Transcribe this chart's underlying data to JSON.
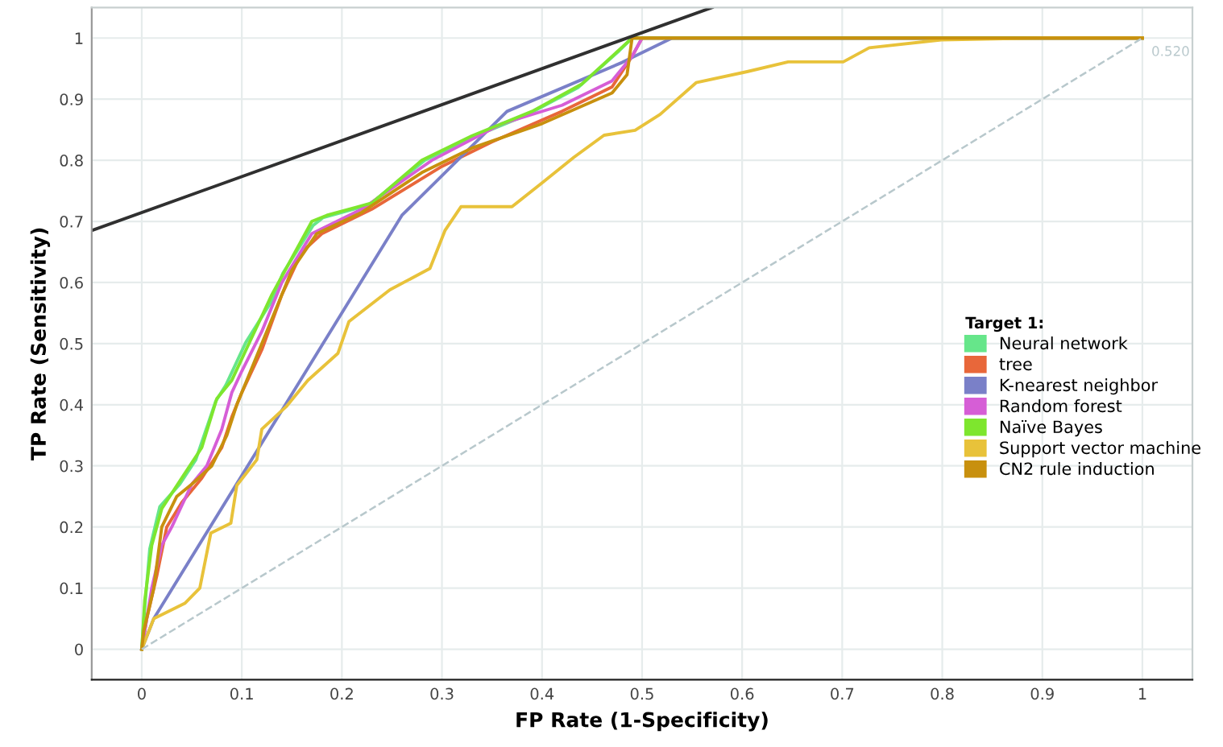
{
  "chart_data": {
    "type": "line",
    "xlabel": "FP Rate (1-Specificity)",
    "ylabel": "TP Rate (Sensitivity)",
    "legend_title": "Target 1:",
    "xlim": [
      -0.05,
      1.05
    ],
    "ylim": [
      -0.05,
      1.05
    ],
    "xticks": [
      0,
      0.1,
      0.2,
      0.3,
      0.4,
      0.5,
      0.6,
      0.7,
      0.8,
      0.9,
      1
    ],
    "yticks": [
      0,
      0.1,
      0.2,
      0.3,
      0.4,
      0.5,
      0.6,
      0.7,
      0.8,
      0.9,
      1
    ],
    "grid": true,
    "legend": "right",
    "marker": "none",
    "annotations": [
      {
        "text": "0.520",
        "x": 1,
        "y": 1
      }
    ],
    "series": [
      {
        "name": "Neural network",
        "color": "#66e68a",
        "x": [
          0,
          0.003,
          0.008,
          0.018,
          0.038,
          0.054,
          0.074,
          0.084,
          0.104,
          0.13,
          0.141,
          0.171,
          0.181,
          0.227,
          0.283,
          0.334,
          0.386,
          0.436,
          0.477,
          0.49,
          1
        ],
        "values": [
          0,
          0.068,
          0.164,
          0.233,
          0.27,
          0.31,
          0.406,
          0.432,
          0.502,
          0.57,
          0.615,
          0.693,
          0.706,
          0.727,
          0.8,
          0.84,
          0.875,
          0.919,
          0.979,
          1,
          1
        ]
      },
      {
        "name": "tree",
        "color": "#e8673a",
        "x": [
          0,
          0.005,
          0.015,
          0.025,
          0.04,
          0.06,
          0.08,
          0.09,
          0.1,
          0.12,
          0.14,
          0.16,
          0.18,
          0.23,
          0.3,
          0.35,
          0.42,
          0.47,
          0.49,
          0.5,
          1
        ],
        "values": [
          0,
          0.05,
          0.12,
          0.2,
          0.24,
          0.28,
          0.33,
          0.38,
          0.42,
          0.49,
          0.58,
          0.65,
          0.68,
          0.72,
          0.79,
          0.83,
          0.88,
          0.92,
          0.97,
          1,
          1
        ]
      },
      {
        "name": "K-nearest neighbor",
        "color": "#7a80c8",
        "x": [
          0,
          0.012,
          0.26,
          0.365,
          0.48,
          0.53,
          1
        ],
        "values": [
          0,
          0.05,
          0.71,
          0.88,
          0.96,
          1,
          1
        ]
      },
      {
        "name": "Random forest",
        "color": "#d65ed6",
        "x": [
          0,
          0.01,
          0.02,
          0.03,
          0.05,
          0.065,
          0.08,
          0.09,
          0.1,
          0.12,
          0.14,
          0.17,
          0.22,
          0.29,
          0.36,
          0.42,
          0.47,
          0.49,
          0.5,
          1
        ],
        "values": [
          0,
          0.1,
          0.17,
          0.2,
          0.27,
          0.3,
          0.36,
          0.42,
          0.455,
          0.52,
          0.6,
          0.68,
          0.72,
          0.8,
          0.86,
          0.89,
          0.93,
          0.97,
          1,
          1
        ]
      },
      {
        "name": "Naïve Bayes",
        "color": "#7ee62e",
        "x": [
          0,
          0.003,
          0.01,
          0.02,
          0.04,
          0.06,
          0.075,
          0.09,
          0.11,
          0.13,
          0.145,
          0.17,
          0.185,
          0.23,
          0.28,
          0.33,
          0.39,
          0.44,
          0.48,
          0.49,
          1
        ],
        "values": [
          0,
          0.08,
          0.17,
          0.23,
          0.28,
          0.33,
          0.41,
          0.44,
          0.51,
          0.58,
          0.625,
          0.7,
          0.71,
          0.73,
          0.8,
          0.84,
          0.88,
          0.925,
          0.985,
          1,
          1
        ]
      },
      {
        "name": "Support vector machine",
        "color": "#e8c23a",
        "x": [
          0,
          0.012,
          0.043,
          0.058,
          0.069,
          0.089,
          0.095,
          0.115,
          0.12,
          0.145,
          0.166,
          0.196,
          0.207,
          0.248,
          0.288,
          0.303,
          0.319,
          0.37,
          0.4,
          0.432,
          0.462,
          0.493,
          0.518,
          0.554,
          0.605,
          0.646,
          0.701,
          0.727,
          0.799,
          0.9,
          1
        ],
        "values": [
          0,
          0.05,
          0.075,
          0.1,
          0.19,
          0.206,
          0.268,
          0.31,
          0.36,
          0.398,
          0.44,
          0.484,
          0.536,
          0.588,
          0.623,
          0.685,
          0.724,
          0.724,
          0.763,
          0.805,
          0.841,
          0.849,
          0.875,
          0.927,
          0.945,
          0.961,
          0.961,
          0.984,
          0.997,
          1,
          1
        ]
      },
      {
        "name": "CN2 rule induction",
        "color": "#c8900e",
        "x": [
          0,
          0.002,
          0.012,
          0.02,
          0.035,
          0.05,
          0.07,
          0.085,
          0.095,
          0.11,
          0.13,
          0.15,
          0.175,
          0.22,
          0.28,
          0.33,
          0.4,
          0.47,
          0.485,
          0.49,
          1
        ],
        "values": [
          0,
          0.03,
          0.1,
          0.2,
          0.25,
          0.27,
          0.3,
          0.35,
          0.4,
          0.46,
          0.54,
          0.62,
          0.68,
          0.715,
          0.78,
          0.82,
          0.86,
          0.91,
          0.94,
          1,
          1
        ]
      },
      {
        "color": "#b8c8cc",
        "line_style": "dashed",
        "x": [
          0,
          1
        ],
        "values": [
          0,
          1
        ]
      },
      {
        "color": "#303030",
        "x": [
          -0.05,
          0.57
        ],
        "values": [
          0.685,
          1.05
        ]
      }
    ]
  }
}
